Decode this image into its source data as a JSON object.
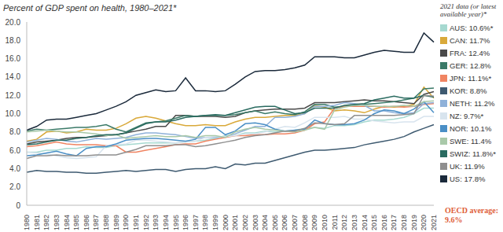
{
  "chart_data": {
    "type": "line",
    "title": "Percent of GDP spent on health, 1980–2021*",
    "annotations": [
      "2021 data (or latest available year)*",
      "OECD average: 9.6%"
    ],
    "categories": [
      "1980",
      "1981",
      "1982",
      "1983",
      "1984",
      "1985",
      "1986",
      "1987",
      "1988",
      "1989",
      "1990",
      "1991",
      "1992",
      "1993",
      "1994",
      "1995",
      "1996",
      "1997",
      "1998",
      "1999",
      "2000",
      "2001",
      "2002",
      "2003",
      "2004",
      "2005",
      "2006",
      "2007",
      "2008",
      "2009",
      "2010",
      "2011",
      "2012",
      "2013",
      "2014",
      "2015",
      "2016",
      "2017",
      "2018",
      "2019",
      "2020",
      "2021"
    ],
    "ylim": [
      0,
      20
    ],
    "yticks": [
      0,
      {
        "value": 2,
        "label": "2.0"
      },
      {
        "value": 4,
        "label": "4.0"
      },
      {
        "value": 6,
        "label": "6.0"
      },
      {
        "value": 8,
        "label": "8.0"
      },
      {
        "value": 10,
        "label": "10.0"
      },
      {
        "value": 12,
        "label": "12.0"
      },
      {
        "value": 14,
        "label": "14.0"
      },
      {
        "value": 16,
        "label": "16.0"
      },
      {
        "value": 18,
        "label": "18.0"
      },
      {
        "value": 20,
        "label": "20.0"
      }
    ],
    "grid": false,
    "legend": "right",
    "series": [
      {
        "name": "AUS: 10.6%*",
        "color": "#a6d9d0",
        "values": [
          5.8,
          5.8,
          6.0,
          6.0,
          6.2,
          6.2,
          6.4,
          6.3,
          6.3,
          6.5,
          6.6,
          6.7,
          6.8,
          6.8,
          6.8,
          6.8,
          6.9,
          7.0,
          7.1,
          7.3,
          7.6,
          7.6,
          7.9,
          7.9,
          8.1,
          8.0,
          8.1,
          8.2,
          8.4,
          8.5,
          8.4,
          8.7,
          8.7,
          8.8,
          9.1,
          9.3,
          9.3,
          9.4,
          9.6,
          10.0,
          10.6,
          10.6
        ]
      },
      {
        "name": "CAN: 11.7%",
        "color": "#d9a93a",
        "values": [
          7.0,
          7.2,
          8.0,
          8.1,
          7.9,
          8.0,
          8.3,
          8.2,
          8.2,
          8.4,
          8.9,
          9.5,
          9.7,
          9.5,
          9.2,
          8.9,
          8.7,
          8.7,
          8.8,
          8.7,
          8.7,
          9.1,
          9.4,
          9.6,
          9.6,
          9.7,
          9.8,
          9.8,
          10.0,
          10.9,
          10.7,
          10.3,
          10.4,
          10.3,
          10.1,
          10.5,
          10.8,
          10.7,
          10.8,
          11.0,
          12.9,
          11.7
        ]
      },
      {
        "name": "FRA: 12.4%",
        "color": "#4a4a4a",
        "values": [
          6.7,
          6.9,
          7.0,
          7.1,
          7.3,
          7.4,
          7.4,
          7.5,
          7.6,
          7.7,
          7.9,
          8.1,
          8.3,
          8.6,
          8.6,
          9.8,
          9.8,
          9.7,
          9.7,
          9.7,
          9.6,
          9.7,
          10.1,
          10.3,
          10.4,
          10.5,
          10.5,
          10.5,
          10.6,
          11.2,
          11.2,
          11.2,
          11.3,
          11.4,
          11.5,
          11.4,
          11.4,
          11.3,
          11.2,
          11.1,
          12.1,
          12.4
        ]
      },
      {
        "name": "GER: 12.8%",
        "color": "#3b7a68",
        "values": [
          8.1,
          8.3,
          8.2,
          8.3,
          8.4,
          8.5,
          8.5,
          8.6,
          8.8,
          8.3,
          8.0,
          8.5,
          9.0,
          9.1,
          9.2,
          9.5,
          9.8,
          9.7,
          9.8,
          9.8,
          9.8,
          9.9,
          10.1,
          10.3,
          10.0,
          10.2,
          10.0,
          9.9,
          10.2,
          11.0,
          11.0,
          10.7,
          10.8,
          10.9,
          11.0,
          11.1,
          11.2,
          11.3,
          11.5,
          11.7,
          12.7,
          12.8
        ]
      },
      {
        "name": "JPN: 11.1%*",
        "color": "#f08462",
        "values": [
          6.4,
          6.5,
          6.7,
          6.9,
          6.7,
          6.6,
          6.6,
          6.6,
          6.5,
          6.5,
          5.8,
          5.8,
          6.0,
          6.2,
          6.4,
          6.6,
          6.7,
          6.7,
          7.0,
          7.2,
          7.4,
          7.6,
          7.6,
          7.7,
          7.7,
          7.8,
          7.8,
          7.9,
          8.2,
          8.9,
          9.1,
          10.6,
          10.8,
          10.8,
          10.8,
          10.8,
          10.7,
          10.8,
          10.7,
          10.8,
          11.0,
          11.1
        ]
      },
      {
        "name": "KOR: 8.8%",
        "color": "#3e5a70",
        "values": [
          3.6,
          3.8,
          3.7,
          3.7,
          3.6,
          3.6,
          3.5,
          3.5,
          3.6,
          3.7,
          3.8,
          3.7,
          3.8,
          3.9,
          3.9,
          3.7,
          3.9,
          4.0,
          4.0,
          4.2,
          4.0,
          4.5,
          4.4,
          4.6,
          4.6,
          4.9,
          5.2,
          5.5,
          5.8,
          6.0,
          6.0,
          6.1,
          6.2,
          6.3,
          6.6,
          6.8,
          7.0,
          7.2,
          7.5,
          8.0,
          8.4,
          8.8
        ]
      },
      {
        "name": "NETH: 11.2%",
        "color": "#8fb1d9",
        "values": [
          6.9,
          7.1,
          7.3,
          7.2,
          7.0,
          6.9,
          7.1,
          7.3,
          7.2,
          7.3,
          7.4,
          7.7,
          7.9,
          7.9,
          7.8,
          7.7,
          7.5,
          7.3,
          7.4,
          7.4,
          7.5,
          7.8,
          8.2,
          8.6,
          8.6,
          9.6,
          9.6,
          9.7,
          10.0,
          10.8,
          10.8,
          10.9,
          11.2,
          11.1,
          10.9,
          10.3,
          10.3,
          10.1,
          10.0,
          10.1,
          11.1,
          11.2
        ]
      },
      {
        "name": "NZ: 9.7%*",
        "color": "#d8e4ee",
        "values": [
          5.8,
          5.7,
          5.6,
          5.4,
          5.2,
          5.1,
          5.2,
          5.3,
          6.5,
          6.6,
          6.7,
          7.1,
          7.1,
          7.0,
          6.9,
          6.8,
          6.9,
          7.0,
          7.4,
          7.5,
          7.5,
          7.6,
          7.8,
          7.8,
          8.0,
          8.3,
          8.6,
          8.5,
          9.0,
          9.6,
          9.6,
          9.6,
          9.7,
          9.4,
          9.4,
          9.2,
          9.1,
          9.0,
          9.1,
          9.1,
          9.7,
          9.7
        ]
      },
      {
        "name": "NOR: 10.1%",
        "color": "#4a8fc6",
        "values": [
          5.4,
          5.5,
          5.7,
          5.9,
          5.6,
          5.4,
          6.2,
          6.4,
          6.4,
          6.7,
          7.1,
          7.2,
          7.3,
          7.3,
          7.2,
          7.1,
          7.0,
          7.2,
          8.5,
          8.5,
          7.7,
          8.1,
          8.9,
          9.0,
          8.8,
          8.3,
          8.1,
          8.2,
          8.3,
          9.3,
          8.9,
          8.8,
          8.8,
          8.9,
          9.3,
          10.0,
          10.4,
          10.3,
          10.0,
          10.5,
          11.3,
          10.1
        ]
      },
      {
        "name": "SWE: 11.4%",
        "color": "#a9c9a9",
        "values": [
          8.0,
          8.1,
          8.2,
          8.1,
          8.0,
          8.0,
          7.9,
          7.8,
          7.6,
          7.7,
          7.3,
          7.4,
          7.5,
          7.6,
          7.5,
          7.5,
          7.6,
          7.4,
          7.6,
          7.6,
          7.4,
          8.0,
          8.3,
          8.5,
          8.3,
          8.2,
          8.1,
          8.0,
          8.2,
          8.5,
          8.3,
          10.4,
          10.7,
          10.9,
          10.9,
          10.8,
          10.8,
          10.8,
          10.9,
          10.8,
          11.3,
          11.4
        ]
      },
      {
        "name": "SWIZ: 11.8%*",
        "color": "#2a6b60",
        "values": [
          6.6,
          6.7,
          6.9,
          7.1,
          7.1,
          7.3,
          7.4,
          7.6,
          7.7,
          7.7,
          7.9,
          8.4,
          8.9,
          9.1,
          9.1,
          9.3,
          9.6,
          9.7,
          9.8,
          9.9,
          9.8,
          10.1,
          10.4,
          10.7,
          10.8,
          10.8,
          10.4,
          10.0,
          10.1,
          10.6,
          10.6,
          10.6,
          10.9,
          11.0,
          11.1,
          11.5,
          11.7,
          11.9,
          11.7,
          11.7,
          12.0,
          11.8
        ]
      },
      {
        "name": "UK: 11.9%",
        "color": "#8f8f8f",
        "values": [
          5.1,
          5.4,
          5.4,
          5.5,
          5.4,
          5.4,
          5.4,
          5.5,
          5.5,
          5.5,
          5.8,
          6.1,
          6.5,
          6.5,
          6.5,
          6.6,
          6.6,
          6.4,
          6.5,
          6.7,
          6.9,
          7.1,
          7.4,
          7.6,
          7.7,
          7.9,
          8.1,
          8.1,
          8.4,
          9.0,
          8.9,
          8.8,
          8.9,
          9.8,
          9.8,
          9.8,
          9.8,
          9.8,
          9.9,
          10.0,
          12.0,
          11.9
        ]
      },
      {
        "name": "US: 17.8%",
        "color": "#1b2a3b",
        "values": [
          8.2,
          8.6,
          9.3,
          9.4,
          9.4,
          9.6,
          9.8,
          10.0,
          10.4,
          10.8,
          11.3,
          12.0,
          12.3,
          12.6,
          12.4,
          12.5,
          13.9,
          12.5,
          12.5,
          12.4,
          12.5,
          13.2,
          14.0,
          14.6,
          14.7,
          14.7,
          14.8,
          15.0,
          15.3,
          16.2,
          16.2,
          16.2,
          16.1,
          16.1,
          16.4,
          16.7,
          16.9,
          16.8,
          16.7,
          16.7,
          18.8,
          17.8
        ]
      }
    ]
  }
}
